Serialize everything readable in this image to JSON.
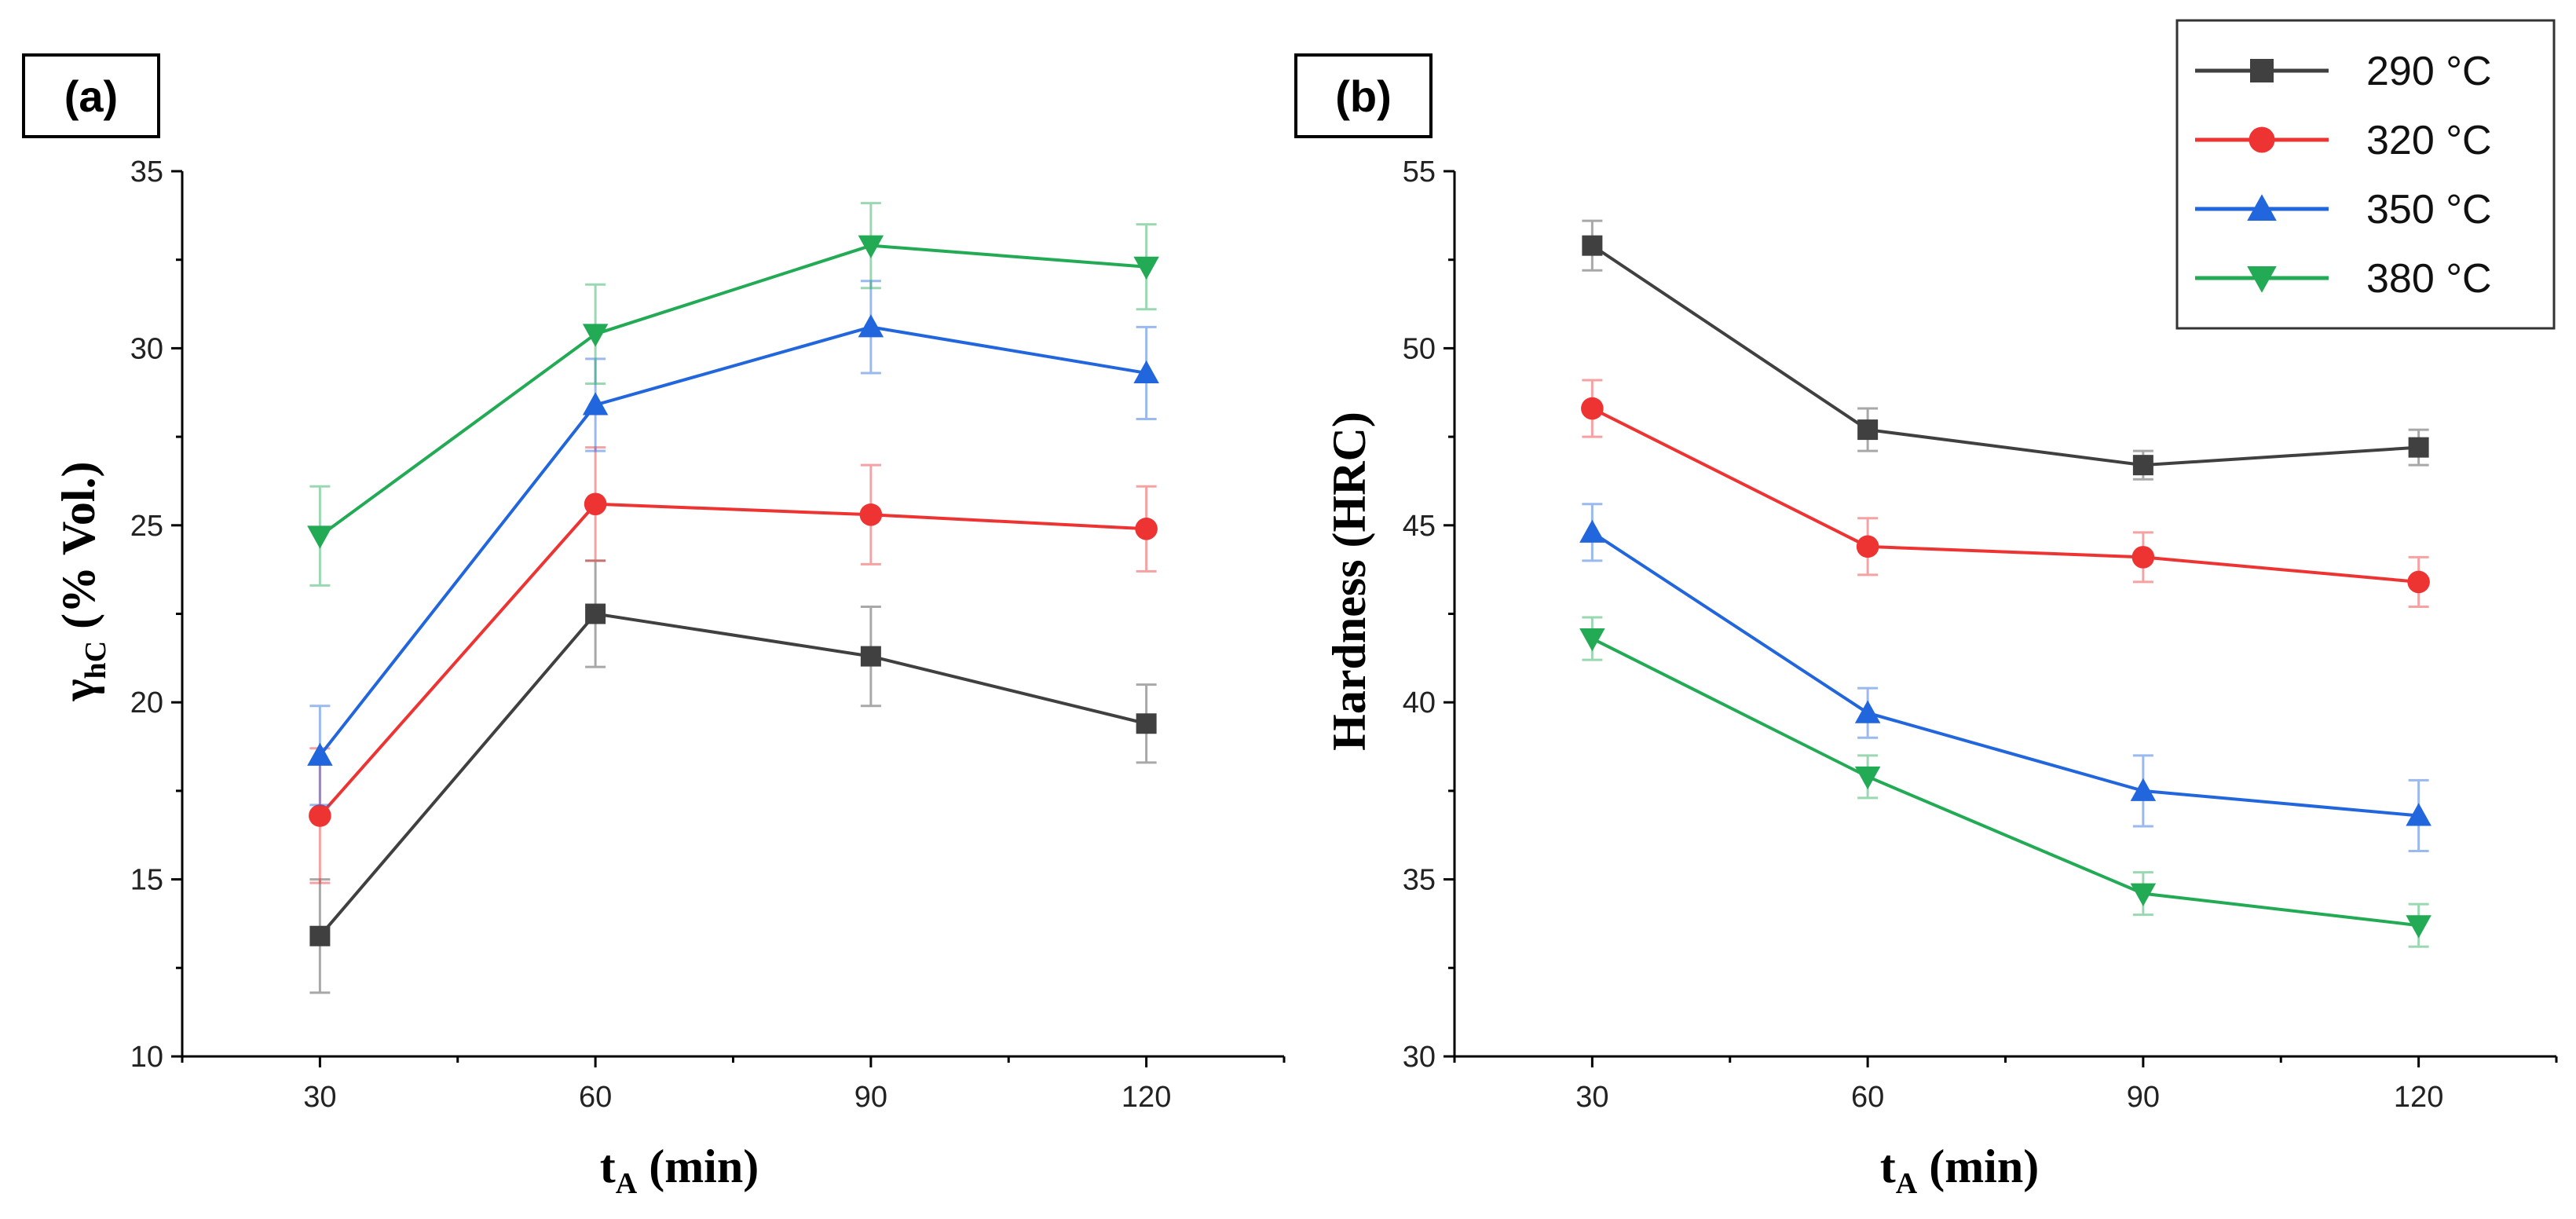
{
  "legend": {
    "series_labels": [
      "290 °C",
      "320 °C",
      "350 °C",
      "380 °C"
    ],
    "colors": [
      "#404040",
      "#ee3333",
      "#2266dd",
      "#22aa55"
    ],
    "markers": [
      "square",
      "circle",
      "triangle-up",
      "triangle-down"
    ]
  },
  "chart_data": [
    {
      "type": "line",
      "panel_label": "(a)",
      "xlabel_main": "t",
      "xlabel_sub": "A",
      "xlabel_rest": " (min)",
      "ylabel_main": "γ",
      "ylabel_sub": "hC",
      "ylabel_rest": "  (% Vol.)",
      "x": [
        30,
        60,
        90,
        120
      ],
      "x_ticks": [
        "30",
        "60",
        "90",
        "120"
      ],
      "xlim": [
        15,
        135
      ],
      "ylim": [
        10,
        35
      ],
      "y_ticks": [
        "10",
        "15",
        "20",
        "25",
        "30",
        "35"
      ],
      "y_tick_values": [
        10,
        15,
        20,
        25,
        30,
        35
      ],
      "series": [
        {
          "name": "290 °C",
          "values": [
            13.4,
            22.5,
            21.3,
            19.4
          ],
          "errors": [
            1.6,
            1.5,
            1.4,
            1.1
          ]
        },
        {
          "name": "320 °C",
          "values": [
            16.8,
            25.6,
            25.3,
            24.9
          ],
          "errors": [
            1.9,
            1.6,
            1.4,
            1.2
          ]
        },
        {
          "name": "350 °C",
          "values": [
            18.5,
            28.4,
            30.6,
            29.3
          ],
          "errors": [
            1.4,
            1.3,
            1.3,
            1.3
          ]
        },
        {
          "name": "380 °C",
          "values": [
            24.7,
            30.4,
            32.9,
            32.3
          ],
          "errors": [
            1.4,
            1.4,
            1.2,
            1.2
          ]
        }
      ]
    },
    {
      "type": "line",
      "panel_label": "(b)",
      "xlabel_main": "t",
      "xlabel_sub": "A",
      "xlabel_rest": " (min)",
      "ylabel_main": "Hardness (HRC)",
      "x": [
        30,
        60,
        90,
        120
      ],
      "x_ticks": [
        "30",
        "60",
        "90",
        "120"
      ],
      "xlim": [
        15,
        135
      ],
      "ylim": [
        30,
        55
      ],
      "y_ticks": [
        "30",
        "35",
        "40",
        "45",
        "50",
        "55"
      ],
      "y_tick_values": [
        30,
        35,
        40,
        45,
        50,
        55
      ],
      "series": [
        {
          "name": "290 °C",
          "values": [
            52.9,
            47.7,
            46.7,
            47.2
          ],
          "errors": [
            0.7,
            0.6,
            0.4,
            0.5
          ]
        },
        {
          "name": "320 °C",
          "values": [
            48.3,
            44.4,
            44.1,
            43.4
          ],
          "errors": [
            0.8,
            0.8,
            0.7,
            0.7
          ]
        },
        {
          "name": "350 °C",
          "values": [
            44.8,
            39.7,
            37.5,
            36.8
          ],
          "errors": [
            0.8,
            0.7,
            1.0,
            1.0
          ]
        },
        {
          "name": "380 °C",
          "values": [
            41.8,
            37.9,
            34.6,
            33.7
          ],
          "errors": [
            0.6,
            0.6,
            0.6,
            0.6
          ]
        }
      ]
    }
  ]
}
